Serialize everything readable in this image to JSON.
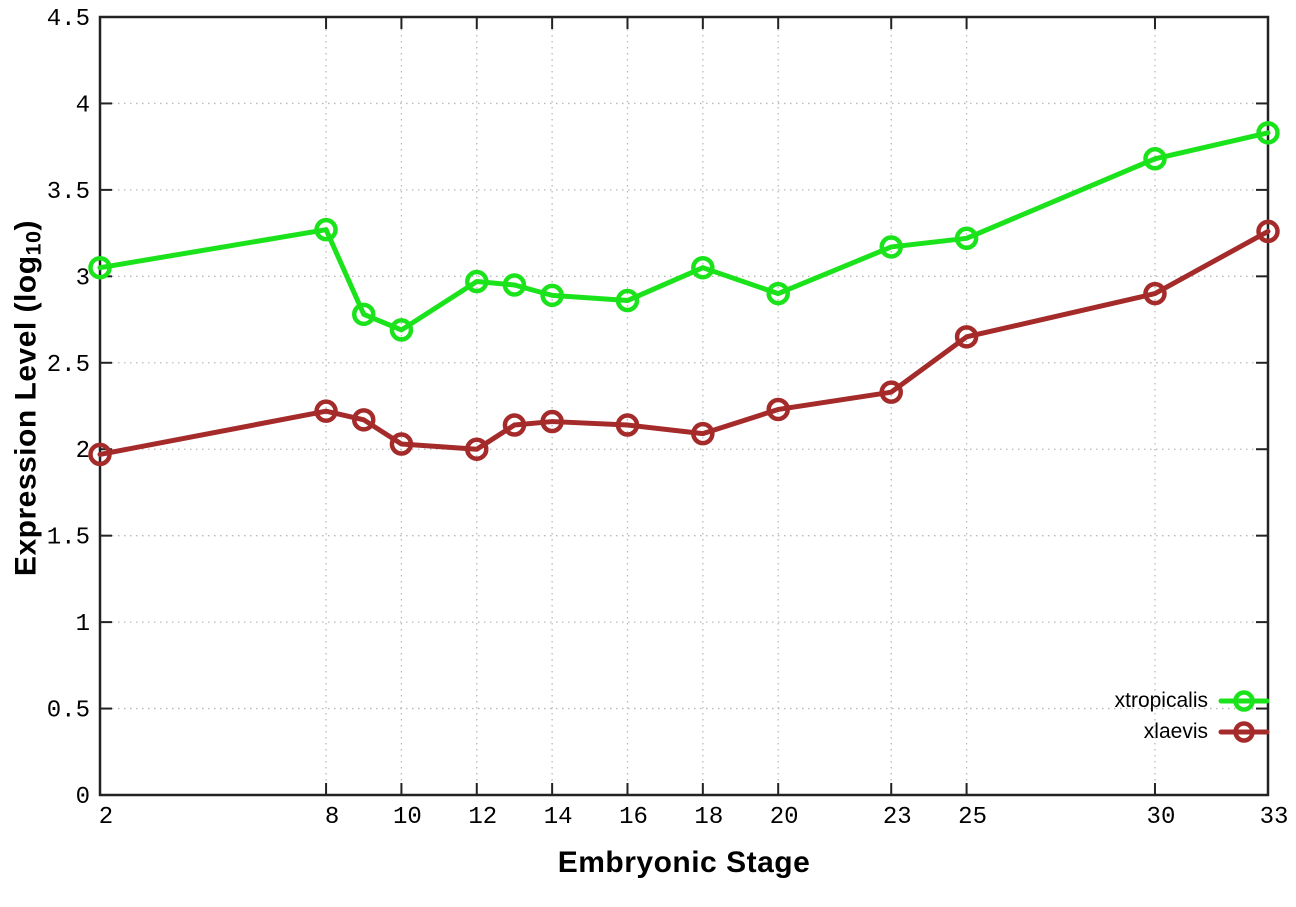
{
  "figure": {
    "xlabel": "Embryonic Stage",
    "ylabel_prefix": "Expression Level (log",
    "ylabel_sub": "10",
    "ylabel_suffix": ")"
  },
  "chart_data": {
    "type": "line",
    "title": "",
    "xlabel": "Embryonic Stage",
    "ylabel": "Expression Level (log10)",
    "x": [
      2,
      8,
      9,
      10,
      12,
      13,
      14,
      16,
      18,
      20,
      23,
      25,
      30,
      33
    ],
    "series": [
      {
        "name": "xtropicalis",
        "color": "#1be31b",
        "values": [
          3.05,
          3.27,
          2.78,
          2.69,
          2.97,
          2.95,
          2.89,
          2.86,
          3.05,
          2.9,
          3.17,
          3.22,
          3.68,
          3.83
        ]
      },
      {
        "name": "xlaevis",
        "color": "#a52a2a",
        "values": [
          1.97,
          2.22,
          2.17,
          2.03,
          2.0,
          2.14,
          2.16,
          2.14,
          2.09,
          2.23,
          2.33,
          2.65,
          2.9,
          3.26
        ]
      }
    ],
    "x_ticks": [
      2,
      8,
      10,
      12,
      14,
      16,
      18,
      20,
      23,
      25,
      30,
      33
    ],
    "y_ticks": [
      0,
      0.5,
      1,
      1.5,
      2,
      2.5,
      3,
      3.5,
      4,
      4.5
    ],
    "xlim": [
      2,
      33
    ],
    "ylim": [
      0,
      4.5
    ],
    "grid": true,
    "legend_position": "bottom-right",
    "axis_color": "#222222",
    "grid_color": "#b9b9b9",
    "text_color": "#000000"
  }
}
